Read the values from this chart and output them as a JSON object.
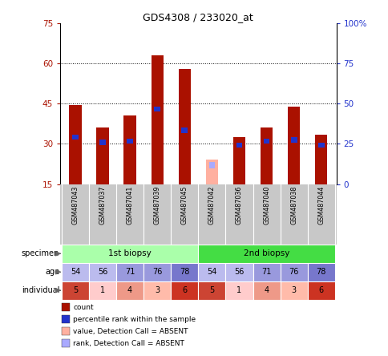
{
  "title": "GDS4308 / 233020_at",
  "samples": [
    "GSM487043",
    "GSM487037",
    "GSM487041",
    "GSM487039",
    "GSM487045",
    "GSM487042",
    "GSM487036",
    "GSM487040",
    "GSM487038",
    "GSM487044"
  ],
  "bar_values": [
    44.5,
    36.0,
    40.5,
    63.0,
    58.0,
    null,
    32.5,
    36.0,
    44.0,
    33.5
  ],
  "absent_value": 24.0,
  "absent_rank": 21.0,
  "percentile_ranks": [
    31.5,
    29.5,
    30.0,
    42.0,
    34.0,
    null,
    28.5,
    30.0,
    30.5,
    28.5
  ],
  "bar_color": "#AA1100",
  "absent_bar_color": "#FFB0A0",
  "percentile_color": "#2233CC",
  "absent_percentile_color": "#AAAAFF",
  "ylim_left": [
    15,
    75
  ],
  "ylim_right": [
    0,
    100
  ],
  "yticks_left": [
    15,
    30,
    45,
    60,
    75
  ],
  "yticks_right": [
    0,
    25,
    50,
    75,
    100
  ],
  "ytick_labels_right": [
    "0",
    "25",
    "50",
    "75",
    "100%"
  ],
  "bar_width": 0.45,
  "absent_index": 5,
  "age_values": [
    54,
    56,
    71,
    76,
    78,
    54,
    56,
    71,
    76,
    78
  ],
  "age_colors": [
    "#BBBBEE",
    "#BBBBEE",
    "#9999DD",
    "#9999DD",
    "#7777CC",
    "#BBBBEE",
    "#BBBBEE",
    "#9999DD",
    "#9999DD",
    "#7777CC"
  ],
  "individual_values": [
    5,
    1,
    4,
    3,
    6,
    5,
    1,
    4,
    3,
    6
  ],
  "individual_colors": [
    "#CC4433",
    "#FFCCCC",
    "#EE9988",
    "#FFBBAA",
    "#CC3322",
    "#CC4433",
    "#FFCCCC",
    "#EE9988",
    "#FFBBAA",
    "#CC3322"
  ],
  "specimen_biopsy1_color": "#AAFFAA",
  "specimen_biopsy2_color": "#44DD44",
  "xticklabel_bg": "#C8C8C8",
  "hgrid_values": [
    30,
    45,
    60
  ],
  "left_axis_color": "#AA1100",
  "right_axis_color": "#2233CC",
  "legend_items": [
    {
      "label": "count",
      "color": "#AA1100"
    },
    {
      "label": "percentile rank within the sample",
      "color": "#2233CC"
    },
    {
      "label": "value, Detection Call = ABSENT",
      "color": "#FFB0A0"
    },
    {
      "label": "rank, Detection Call = ABSENT",
      "color": "#AAAAFF"
    }
  ]
}
